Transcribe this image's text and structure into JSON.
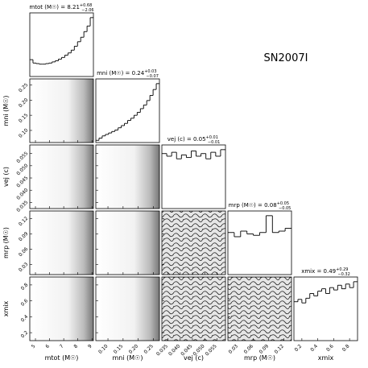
{
  "chart_data": {
    "type": "corner",
    "annotation": "SN2007I",
    "parameters": [
      {
        "label": "mtot (M☉)",
        "title": "mtot (M☉) = 8.21",
        "upper": "+0.68",
        "lower": "−2.06",
        "lim": [
          4.6,
          9.1
        ],
        "ticks": [
          5,
          6,
          7,
          8,
          9
        ],
        "bins": [
          4.6,
          4.825,
          5.05,
          5.275,
          5.5,
          5.725,
          5.95,
          6.175,
          6.4,
          6.625,
          6.85,
          7.075,
          7.3,
          7.525,
          7.75,
          7.975,
          8.2,
          8.425,
          8.65,
          8.875,
          9.1
        ],
        "counts": [
          300,
          240,
          230,
          220,
          220,
          230,
          240,
          260,
          280,
          310,
          340,
          380,
          420,
          470,
          540,
          620,
          700,
          800,
          900,
          1050
        ]
      },
      {
        "label": "mni (M☉)",
        "title": "mni (M☉) = 0.24",
        "upper": "+0.03",
        "lower": "−0.07",
        "lim": [
          0.06,
          0.27
        ],
        "ticks": [
          {
            "value": 0.1,
            "label": "0.10"
          },
          0.15,
          {
            "value": 0.2,
            "label": "0.20"
          },
          0.25
        ],
        "bins": [
          0.06,
          0.0705,
          0.081,
          0.0915,
          0.102,
          0.1125,
          0.123,
          0.1335,
          0.144,
          0.1545,
          0.165,
          0.1755,
          0.186,
          0.1965,
          0.207,
          0.2175,
          0.228,
          0.2385,
          0.249,
          0.2595,
          0.27
        ],
        "counts": [
          30,
          60,
          90,
          110,
          130,
          150,
          170,
          200,
          230,
          260,
          300,
          330,
          370,
          410,
          460,
          510,
          570,
          640,
          720,
          800
        ]
      },
      {
        "label": "vej (c)",
        "title": "vej (c) = 0.05",
        "upper": "+0.01",
        "lower": "−0.01",
        "lim": [
          0.0325,
          0.0585
        ],
        "ticks": [
          0.035,
          {
            "value": 0.04,
            "label": "0.040"
          },
          0.045,
          {
            "value": 0.05,
            "label": "0.050"
          },
          0.055
        ],
        "bins": [
          0.0325,
          0.0345,
          0.0365,
          0.0385,
          0.0405,
          0.0425,
          0.0445,
          0.0465,
          0.0485,
          0.0505,
          0.0525,
          0.0545,
          0.0565,
          0.0585
        ],
        "counts": [
          420,
          400,
          430,
          380,
          410,
          390,
          440,
          400,
          420,
          380,
          430,
          400,
          450
        ]
      },
      {
        "label": "mrp (M☉)",
        "title": "mrp (M☉) = 0.08",
        "upper": "+0.05",
        "lower": "−0.05",
        "lim": [
          0.01,
          0.135
        ],
        "ticks": [
          0.03,
          0.06,
          0.09,
          0.12
        ],
        "bins": [
          0.01,
          0.0225,
          0.035,
          0.0475,
          0.06,
          0.0725,
          0.085,
          0.0975,
          0.11,
          0.1225,
          0.135
        ],
        "counts": [
          300,
          270,
          310,
          290,
          280,
          300,
          420,
          300,
          310,
          330
        ]
      },
      {
        "label": "xmix",
        "title": "xmix = 0.49",
        "upper": "+0.29",
        "lower": "−0.32",
        "lim": [
          0.1,
          0.9
        ],
        "ticks": [
          0.2,
          0.4,
          0.6,
          0.8
        ],
        "bins": [
          0.1,
          0.15,
          0.2,
          0.25,
          0.3,
          0.35,
          0.4,
          0.45,
          0.5,
          0.55,
          0.6,
          0.65,
          0.7,
          0.75,
          0.8,
          0.85,
          0.9
        ],
        "counts": [
          330,
          350,
          320,
          360,
          400,
          380,
          420,
          440,
          400,
          450,
          430,
          470,
          440,
          480,
          450,
          500
        ]
      }
    ]
  }
}
